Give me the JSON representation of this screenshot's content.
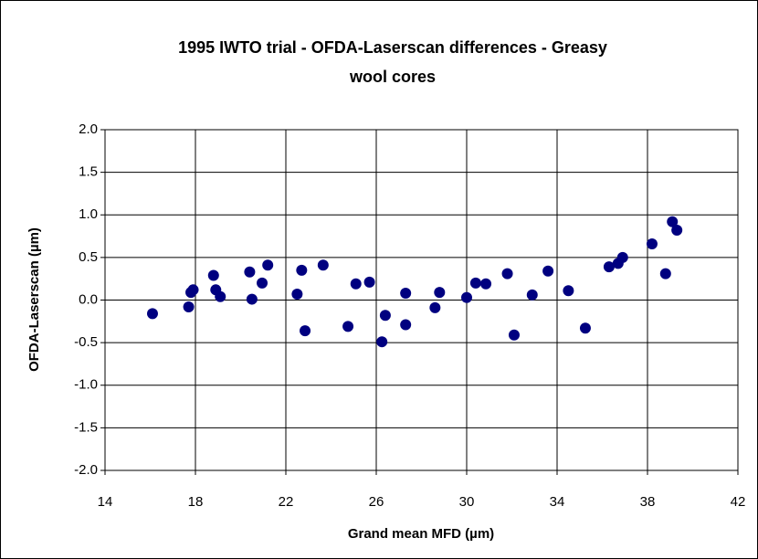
{
  "chart_data": {
    "type": "scatter",
    "title": "1995 IWTO trial - OFDA-Laserscan differences - Greasy",
    "subtitle": "wool cores",
    "x_label": "Grand mean MFD (µm)",
    "y_label": "OFDA-Laserscan (µm)",
    "color": "#000080",
    "grid": true,
    "x": [
      16.1,
      17.7,
      17.8,
      17.9,
      18.8,
      18.9,
      19.1,
      20.4,
      20.5,
      20.95,
      21.2,
      22.5,
      22.7,
      22.85,
      23.65,
      24.75,
      25.1,
      25.7,
      26.25,
      26.4,
      27.3,
      27.3,
      28.6,
      28.8,
      30.0,
      30.4,
      30.85,
      31.8,
      32.1,
      32.9,
      33.6,
      34.5,
      35.25,
      36.3,
      36.7,
      36.9,
      38.2,
      38.8,
      39.1,
      39.3
    ],
    "values": [
      -0.16,
      -0.08,
      0.09,
      0.12,
      0.29,
      0.12,
      0.04,
      0.33,
      0.01,
      0.2,
      0.41,
      0.07,
      0.35,
      -0.36,
      0.41,
      -0.31,
      0.19,
      0.21,
      -0.49,
      -0.18,
      -0.29,
      0.08,
      -0.09,
      0.09,
      0.03,
      0.2,
      0.19,
      0.31,
      -0.41,
      0.06,
      0.34,
      0.11,
      -0.33,
      0.39,
      0.43,
      0.5,
      0.66,
      0.31,
      0.92,
      0.82
    ],
    "xlim": [
      14,
      42
    ],
    "xticks": [
      14,
      18,
      22,
      26,
      30,
      34,
      38,
      42
    ],
    "ylim": [
      -2,
      2
    ],
    "yticks": [
      {
        "value": -2,
        "label": "-2.0"
      },
      {
        "value": -1.5,
        "label": "-1.5"
      },
      {
        "value": -1,
        "label": "-1.0"
      },
      {
        "value": -0.5,
        "label": "-0.5"
      },
      {
        "value": 0,
        "label": "0.0"
      },
      {
        "value": 0.5,
        "label": "0.5"
      },
      {
        "value": 1,
        "label": "1.0"
      },
      {
        "value": 1.5,
        "label": "1.5"
      },
      {
        "value": 2,
        "label": "2.0"
      }
    ]
  }
}
